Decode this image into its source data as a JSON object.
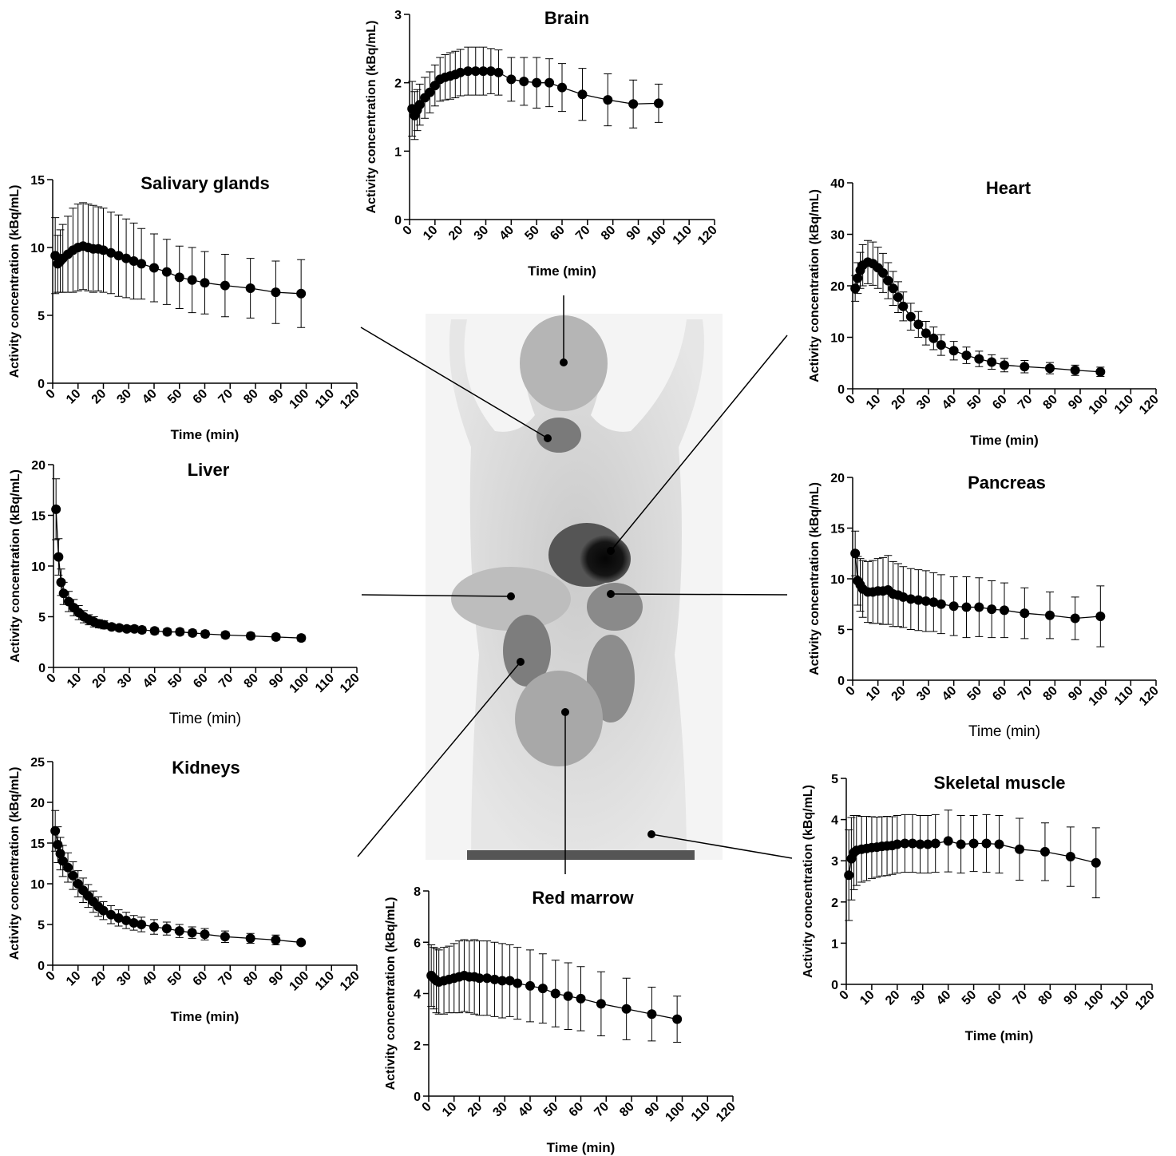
{
  "chart_data": [
    {
      "type": "line",
      "title": "Brain",
      "x_label": "Time (min)",
      "y_label": "Activity concentration (kBq/mL)",
      "color": "#000000",
      "x": [
        1,
        2,
        3,
        4,
        6,
        8,
        10,
        12,
        14,
        16,
        18,
        20,
        23,
        26,
        29,
        32,
        35,
        40,
        45,
        50,
        55,
        60,
        68,
        78,
        88,
        98
      ],
      "values": [
        1.62,
        1.52,
        1.6,
        1.68,
        1.78,
        1.86,
        1.96,
        2.05,
        2.08,
        2.1,
        2.12,
        2.15,
        2.17,
        2.17,
        2.17,
        2.17,
        2.15,
        2.05,
        2.02,
        2.0,
        2.0,
        1.93,
        1.83,
        1.75,
        1.69,
        1.7
      ],
      "errors": [
        0.4,
        0.35,
        0.3,
        0.3,
        0.3,
        0.3,
        0.3,
        0.32,
        0.33,
        0.34,
        0.34,
        0.34,
        0.35,
        0.35,
        0.35,
        0.33,
        0.33,
        0.32,
        0.35,
        0.37,
        0.35,
        0.35,
        0.38,
        0.38,
        0.35,
        0.28
      ],
      "xlim": [
        0,
        120
      ],
      "xticks": [
        0,
        10,
        20,
        30,
        40,
        50,
        60,
        70,
        80,
        90,
        100,
        110,
        120
      ],
      "ylim": [
        0,
        3
      ],
      "yticks": [
        0,
        1,
        2,
        3
      ]
    },
    {
      "type": "line",
      "title": "Salivary glands",
      "x_label": "Time (min)",
      "y_label": "Activity concentration (kBq/mL)",
      "color": "#000000",
      "x": [
        1,
        2,
        3,
        4,
        6,
        8,
        10,
        12,
        14,
        16,
        18,
        20,
        23,
        26,
        29,
        32,
        35,
        40,
        45,
        50,
        55,
        60,
        68,
        78,
        88,
        98
      ],
      "values": [
        9.4,
        8.8,
        9.0,
        9.2,
        9.5,
        9.8,
        10.0,
        10.1,
        10.0,
        9.9,
        9.9,
        9.8,
        9.6,
        9.4,
        9.2,
        9.0,
        8.8,
        8.5,
        8.2,
        7.8,
        7.6,
        7.4,
        7.2,
        7.0,
        6.7,
        6.6
      ],
      "errors": [
        2.8,
        2.1,
        2.3,
        2.5,
        2.8,
        3.1,
        3.2,
        3.2,
        3.2,
        3.2,
        3.1,
        3.1,
        3.0,
        3.0,
        2.9,
        2.8,
        2.6,
        2.5,
        2.4,
        2.3,
        2.4,
        2.3,
        2.3,
        2.2,
        2.3,
        2.5
      ],
      "xlim": [
        0,
        120
      ],
      "xticks": [
        0,
        10,
        20,
        30,
        40,
        50,
        60,
        70,
        80,
        90,
        100,
        110,
        120
      ],
      "ylim": [
        0,
        15
      ],
      "yticks": [
        0,
        5,
        10,
        15
      ]
    },
    {
      "type": "line",
      "title": "Heart",
      "x_label": "Time (min)",
      "y_label": "Activity concentration (kBq/mL)",
      "color": "#000000",
      "x": [
        1,
        2,
        3,
        4,
        6,
        8,
        10,
        12,
        14,
        16,
        18,
        20,
        23,
        26,
        29,
        32,
        35,
        40,
        45,
        50,
        55,
        60,
        68,
        78,
        88,
        98
      ],
      "values": [
        19.5,
        21.5,
        23.0,
        24.0,
        24.6,
        24.3,
        23.5,
        22.5,
        21.0,
        19.5,
        17.8,
        16.0,
        14.0,
        12.5,
        10.8,
        9.8,
        8.5,
        7.4,
        6.5,
        5.8,
        5.2,
        4.6,
        4.3,
        4.0,
        3.6,
        3.3
      ],
      "errors": [
        2.5,
        3.0,
        3.5,
        4.0,
        4.2,
        4.2,
        4.0,
        3.8,
        3.5,
        3.3,
        3.0,
        2.8,
        2.6,
        2.5,
        2.3,
        2.2,
        2.0,
        1.8,
        1.6,
        1.5,
        1.4,
        1.3,
        1.2,
        1.1,
        1.0,
        0.9
      ],
      "xlim": [
        0,
        120
      ],
      "xticks": [
        0,
        10,
        20,
        30,
        40,
        50,
        60,
        70,
        80,
        90,
        100,
        110,
        120
      ],
      "ylim": [
        0,
        40
      ],
      "yticks": [
        0,
        10,
        20,
        30,
        40
      ]
    },
    {
      "type": "line",
      "title": "Liver",
      "x_label": "Time (min)",
      "y_label": "Activity concentration (kBq/mL)",
      "color": "#000000",
      "x": [
        1,
        2,
        3,
        4,
        6,
        8,
        10,
        12,
        14,
        16,
        18,
        20,
        23,
        26,
        29,
        32,
        35,
        40,
        45,
        50,
        55,
        60,
        68,
        78,
        88,
        98
      ],
      "values": [
        15.6,
        10.9,
        8.4,
        7.3,
        6.5,
        5.9,
        5.4,
        5.0,
        4.7,
        4.5,
        4.3,
        4.2,
        4.0,
        3.9,
        3.8,
        3.8,
        3.7,
        3.6,
        3.5,
        3.5,
        3.4,
        3.3,
        3.2,
        3.1,
        3.0,
        2.9
      ],
      "errors": [
        3.0,
        1.8,
        1.3,
        1.1,
        1.0,
        0.8,
        0.7,
        0.6,
        0.5,
        0.5,
        0.4,
        0.4,
        0.3,
        0.3,
        0.3,
        0.3,
        0.3,
        0.3,
        0.3,
        0.3,
        0.3,
        0.3,
        0.3,
        0.3,
        0.3,
        0.3
      ],
      "xlim": [
        0,
        120
      ],
      "xticks": [
        0,
        10,
        20,
        30,
        40,
        50,
        60,
        70,
        80,
        90,
        100,
        110,
        120
      ],
      "ylim": [
        0,
        20
      ],
      "yticks": [
        0,
        5,
        10,
        15,
        20
      ]
    },
    {
      "type": "line",
      "title": "Pancreas",
      "x_label": "Time (min)",
      "y_label": "Activity concentration (kBq/mL)",
      "color": "#000000",
      "x": [
        1,
        2,
        3,
        4,
        6,
        8,
        10,
        12,
        14,
        16,
        18,
        20,
        23,
        26,
        29,
        32,
        35,
        40,
        45,
        50,
        55,
        60,
        68,
        78,
        88,
        98
      ],
      "values": [
        12.5,
        9.8,
        9.4,
        9.0,
        8.7,
        8.7,
        8.8,
        8.8,
        8.9,
        8.5,
        8.4,
        8.2,
        8.0,
        7.9,
        7.8,
        7.7,
        7.5,
        7.3,
        7.2,
        7.2,
        7.0,
        6.9,
        6.6,
        6.4,
        6.1,
        6.3
      ],
      "errors": [
        2.2,
        2.4,
        2.6,
        2.8,
        3.0,
        3.1,
        3.2,
        3.3,
        3.4,
        3.2,
        3.1,
        3.0,
        3.0,
        3.0,
        3.0,
        2.9,
        2.9,
        2.9,
        3.0,
        2.9,
        2.8,
        2.7,
        2.5,
        2.3,
        2.1,
        3.0
      ],
      "xlim": [
        0,
        120
      ],
      "xticks": [
        0,
        10,
        20,
        30,
        40,
        50,
        60,
        70,
        80,
        90,
        100,
        110,
        120
      ],
      "ylim": [
        0,
        20
      ],
      "yticks": [
        0,
        5,
        10,
        15,
        20
      ]
    },
    {
      "type": "line",
      "title": "Kidneys",
      "x_label": "Time (min)",
      "y_label": "Activity concentration (kBq/mL)",
      "color": "#000000",
      "x": [
        1,
        2,
        3,
        4,
        6,
        8,
        10,
        12,
        14,
        16,
        18,
        20,
        23,
        26,
        29,
        32,
        35,
        40,
        45,
        50,
        55,
        60,
        68,
        78,
        88,
        98
      ],
      "values": [
        16.5,
        14.8,
        13.7,
        12.8,
        12.0,
        11.0,
        10.0,
        9.2,
        8.5,
        7.8,
        7.2,
        6.7,
        6.2,
        5.8,
        5.5,
        5.2,
        5.0,
        4.7,
        4.5,
        4.2,
        4.0,
        3.8,
        3.5,
        3.3,
        3.1,
        2.8
      ],
      "errors": [
        2.5,
        2.2,
        2.0,
        1.9,
        1.8,
        1.7,
        1.6,
        1.5,
        1.4,
        1.3,
        1.2,
        1.1,
        1.1,
        1.0,
        1.0,
        0.9,
        0.9,
        0.9,
        0.8,
        0.8,
        0.7,
        0.7,
        0.7,
        0.6,
        0.6,
        0.3
      ],
      "xlim": [
        0,
        120
      ],
      "xticks": [
        0,
        10,
        20,
        30,
        40,
        50,
        60,
        70,
        80,
        90,
        100,
        110,
        120
      ],
      "ylim": [
        0,
        25
      ],
      "yticks": [
        0,
        5,
        10,
        15,
        20,
        25
      ]
    },
    {
      "type": "line",
      "title": "Skeletal muscle",
      "x_label": "Time (min)",
      "y_label": "Activity concentration (kBq/mL)",
      "color": "#000000",
      "x": [
        1,
        2,
        3,
        4,
        6,
        8,
        10,
        12,
        14,
        16,
        18,
        20,
        23,
        26,
        29,
        32,
        35,
        40,
        45,
        50,
        55,
        60,
        68,
        78,
        88,
        98
      ],
      "values": [
        2.65,
        3.05,
        3.2,
        3.25,
        3.28,
        3.3,
        3.32,
        3.33,
        3.35,
        3.36,
        3.37,
        3.4,
        3.42,
        3.42,
        3.4,
        3.4,
        3.42,
        3.48,
        3.4,
        3.42,
        3.42,
        3.4,
        3.28,
        3.22,
        3.1,
        2.95
      ],
      "errors": [
        1.1,
        1.0,
        0.9,
        0.85,
        0.8,
        0.78,
        0.75,
        0.73,
        0.72,
        0.72,
        0.7,
        0.7,
        0.7,
        0.7,
        0.7,
        0.7,
        0.7,
        0.75,
        0.7,
        0.68,
        0.7,
        0.7,
        0.75,
        0.7,
        0.72,
        0.85
      ],
      "xlim": [
        0,
        120
      ],
      "xticks": [
        0,
        10,
        20,
        30,
        40,
        50,
        60,
        70,
        80,
        90,
        100,
        110,
        120
      ],
      "ylim": [
        0,
        5
      ],
      "yticks": [
        0,
        1,
        2,
        3,
        4,
        5
      ]
    },
    {
      "type": "line",
      "title": "Red marrow",
      "x_label": "Time (min)",
      "y_label": "Activity concentration (kBq/mL)",
      "color": "#000000",
      "x": [
        1,
        2,
        3,
        4,
        6,
        8,
        10,
        12,
        14,
        16,
        18,
        20,
        23,
        26,
        29,
        32,
        35,
        40,
        45,
        50,
        55,
        60,
        68,
        78,
        88,
        98
      ],
      "values": [
        4.7,
        4.6,
        4.5,
        4.45,
        4.5,
        4.55,
        4.6,
        4.65,
        4.7,
        4.65,
        4.65,
        4.6,
        4.6,
        4.55,
        4.5,
        4.5,
        4.4,
        4.3,
        4.2,
        4.0,
        3.9,
        3.8,
        3.6,
        3.4,
        3.2,
        3.0
      ],
      "errors": [
        1.2,
        1.2,
        1.25,
        1.25,
        1.3,
        1.3,
        1.35,
        1.4,
        1.4,
        1.4,
        1.45,
        1.45,
        1.45,
        1.45,
        1.45,
        1.4,
        1.4,
        1.4,
        1.35,
        1.3,
        1.3,
        1.25,
        1.25,
        1.2,
        1.05,
        0.9
      ],
      "xlim": [
        0,
        120
      ],
      "xticks": [
        0,
        10,
        20,
        30,
        40,
        50,
        60,
        70,
        80,
        90,
        100,
        110,
        120
      ],
      "ylim": [
        0,
        8
      ],
      "yticks": [
        0,
        2,
        4,
        6,
        8
      ]
    }
  ]
}
